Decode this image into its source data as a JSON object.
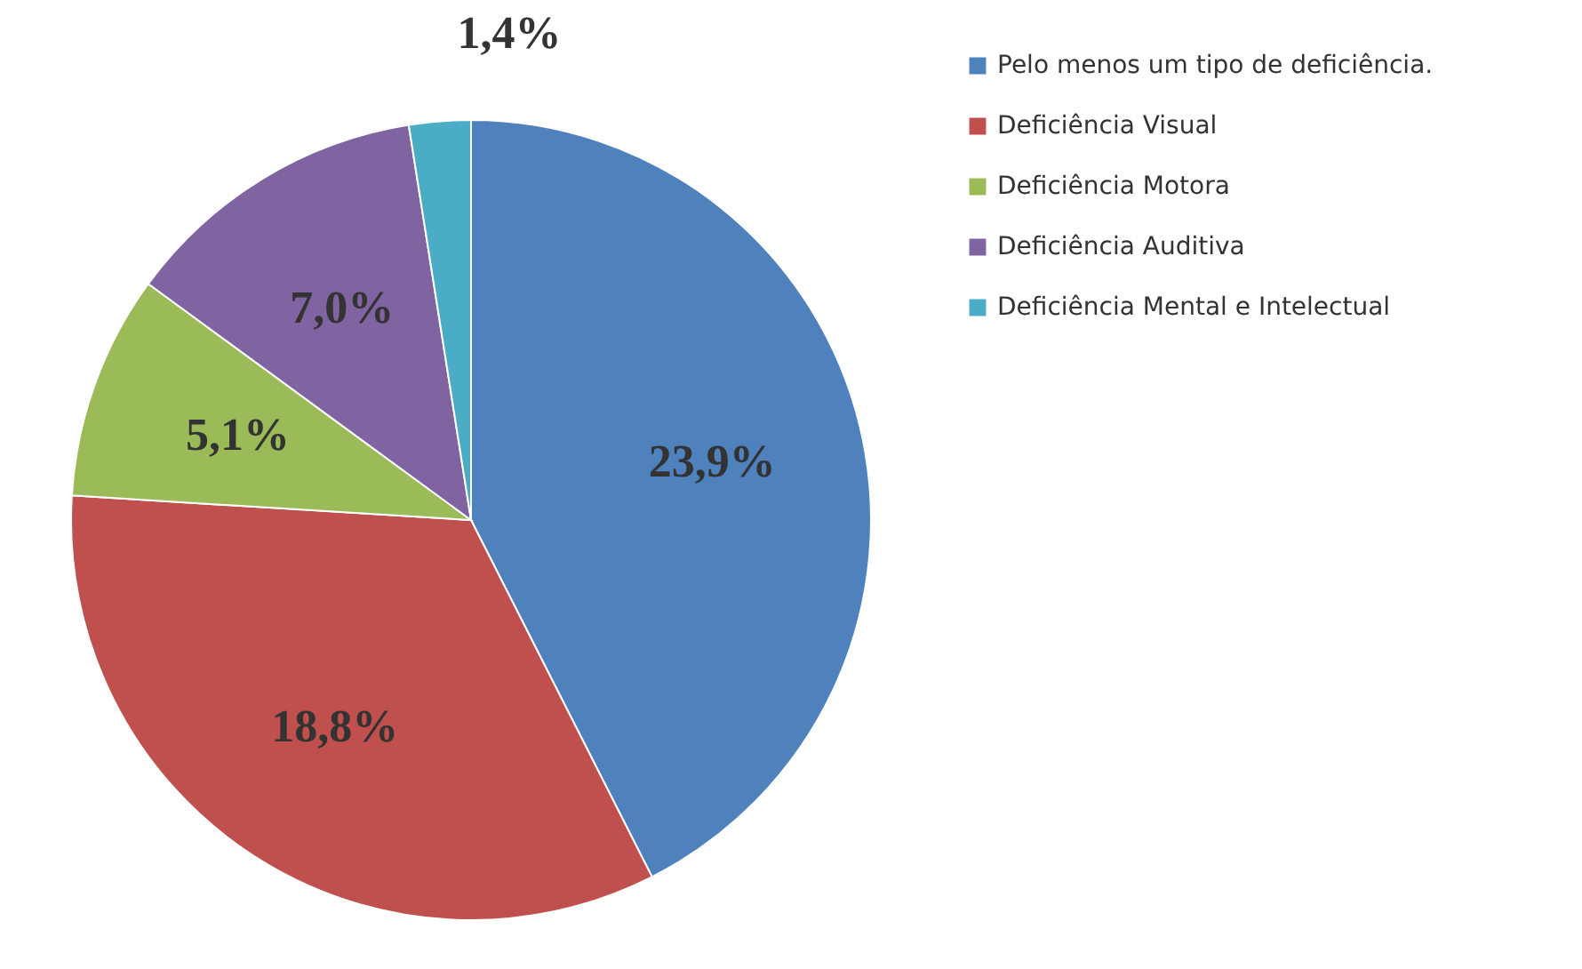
{
  "chart_data": {
    "type": "pie",
    "categories": [
      "Pelo menos um tipo de deficiência.",
      "Deficiência Visual",
      "Deficiência Motora",
      "Deficiência Auditiva",
      "Deficiência Mental e Intelectual"
    ],
    "values": [
      23.9,
      18.8,
      5.1,
      7.0,
      1.4
    ],
    "value_labels": [
      "23,9%",
      "18,8%",
      "5,1%",
      "7,0%",
      "1,4%"
    ],
    "colors": [
      "#4f81bd",
      "#c0504d",
      "#9bbb59",
      "#8064a2",
      "#4bacc6"
    ],
    "legend": "right"
  }
}
